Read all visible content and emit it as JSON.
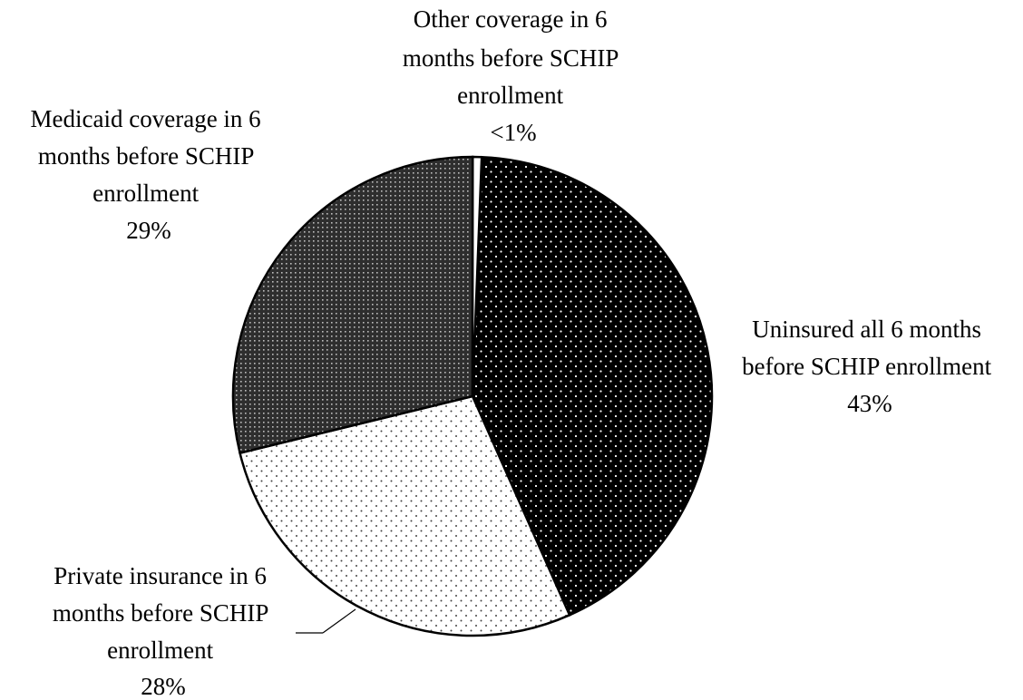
{
  "chart_data": {
    "type": "pie",
    "slices": [
      {
        "label_lines": [
          "Uninsured all 6 months",
          "before SCHIP enrollment"
        ],
        "value": 43,
        "value_label": "43%",
        "color": "#000000",
        "pattern": "dots-light-on-dark"
      },
      {
        "label_lines": [
          "Private insurance in 6",
          "months before SCHIP",
          "enrollment"
        ],
        "value": 28,
        "value_label": "28%",
        "color": "#ffffff",
        "pattern": "dots-dark-on-light"
      },
      {
        "label_lines": [
          "Medicaid coverage in 6",
          "months before SCHIP",
          "enrollment"
        ],
        "value": 29,
        "value_label": "29%",
        "color": "#3a3a3a",
        "pattern": "fine-dots-medium-dark"
      },
      {
        "label_lines": [
          "Other coverage in 6",
          "months before SCHIP",
          "enrollment"
        ],
        "value": 0.6,
        "value_label": "<1%",
        "color": "#ffffff",
        "pattern": "none"
      }
    ],
    "start_angle_deg": 0,
    "direction": "clockwise",
    "legend": "none"
  }
}
